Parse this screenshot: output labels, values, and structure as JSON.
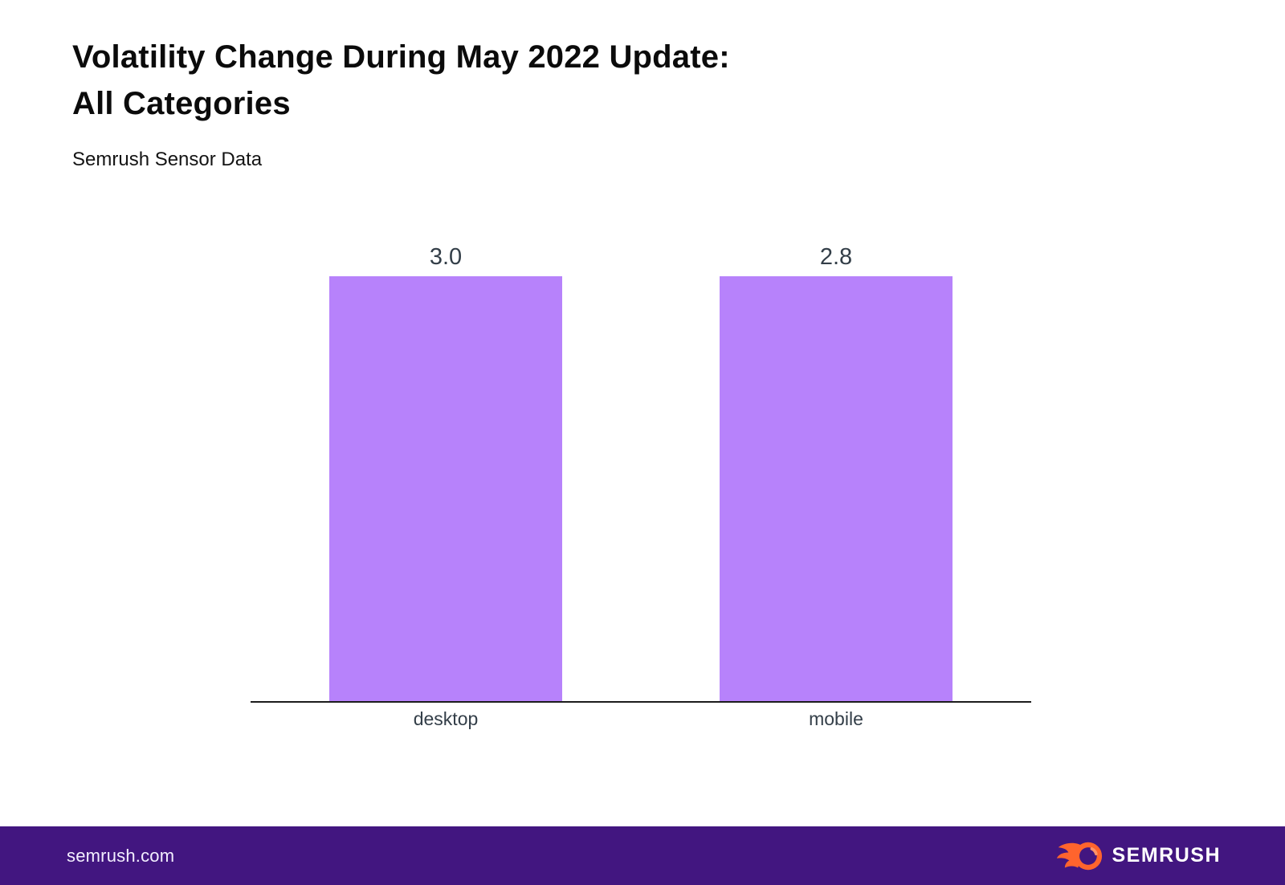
{
  "header": {
    "title_line1": "Volatility Change During May 2022 Update:",
    "title_line2": "All Categories",
    "subtitle": "Semrush Sensor Data"
  },
  "chart_data": {
    "type": "bar",
    "title": "Volatility Change During May 2022 Update: All Categories",
    "subtitle": "Semrush Sensor Data",
    "categories": [
      "desktop",
      "mobile"
    ],
    "values": [
      3.0,
      2.8
    ],
    "value_labels": [
      "3.0",
      "2.8"
    ],
    "xlabel": "",
    "ylabel": "",
    "ylim": [
      0,
      3.0
    ],
    "grid": false,
    "legend_position": "none",
    "bar_color": "#b782fb",
    "label_color": "#333e48",
    "axis_color": "#1c1c1c"
  },
  "footer": {
    "site_url": "semrush.com",
    "logo_text": "SEMRUSH",
    "background": "#421680",
    "brand_orange": "#ff642d"
  }
}
